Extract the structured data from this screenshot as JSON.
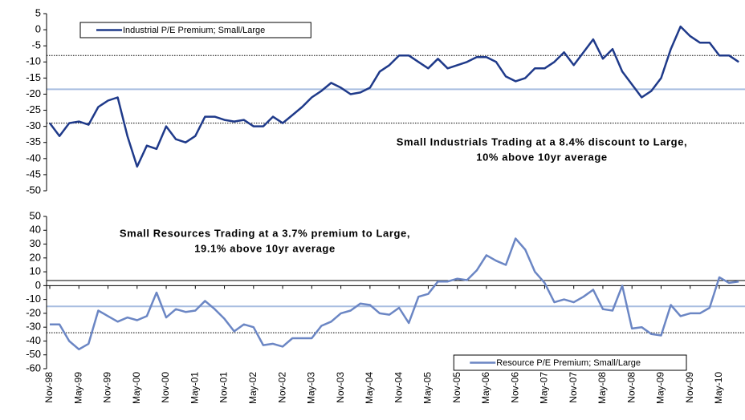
{
  "chart_data": [
    {
      "type": "line",
      "ylim": [
        -50,
        5
      ],
      "yticks": [
        5,
        0,
        -5,
        -10,
        -15,
        -20,
        -25,
        -30,
        -35,
        -40,
        -45,
        -50
      ],
      "series": [
        {
          "name": "Industrial P/E Premium; Small/Large",
          "color": "#1f3a8a",
          "values": [
            -29,
            -33,
            -29,
            -28.5,
            -29.5,
            -24,
            -22,
            -21,
            -33,
            -42.5,
            -36,
            -37,
            -30,
            -34,
            -35,
            -33,
            -27,
            -27,
            -28,
            -28.5,
            -28,
            -30,
            -30,
            -27,
            -29,
            -26.5,
            -24,
            -21,
            -19,
            -16.5,
            -18,
            -20,
            -19.5,
            -18,
            -13,
            -11,
            -8,
            -8,
            -10,
            -12,
            -9,
            -12,
            -11,
            -10,
            -8.5,
            -8.5,
            -10,
            -14.5,
            -16,
            -15,
            -12,
            -12,
            -10,
            -7,
            -11,
            -7,
            -3,
            -9,
            -6,
            -13,
            -17,
            -21,
            -19,
            -15,
            -6,
            1,
            -2,
            -4,
            -4,
            -8,
            -8,
            -10
          ]
        }
      ],
      "hlines": [
        {
          "value": -8,
          "color": "#000000",
          "dash": true
        },
        {
          "value": -18.5,
          "color": "#a8bde0",
          "dash": false
        },
        {
          "value": -29,
          "color": "#000000",
          "dash": true
        }
      ],
      "annotation": [
        "Small Industrials Trading at a 8.4% discount to Large,",
        "10%  above 10yr average"
      ],
      "legend": "top-left"
    },
    {
      "type": "line",
      "categories": [
        "Nov-98",
        null,
        null,
        "May-99",
        null,
        null,
        "Nov-99",
        null,
        null,
        "May-00",
        null,
        null,
        "Nov-00",
        null,
        null,
        "May-01",
        null,
        null,
        "Nov-01",
        null,
        null,
        "May-02",
        null,
        null,
        "Nov-02",
        null,
        null,
        "May-03",
        null,
        null,
        "Nov-03",
        null,
        null,
        "May-04",
        null,
        null,
        "Nov-04",
        null,
        null,
        "May-05",
        null,
        null,
        "Nov-05",
        null,
        null,
        "May-06",
        null,
        null,
        "Nov-06",
        null,
        null,
        "May-07",
        null,
        null,
        "Nov-07",
        null,
        null,
        "May-08",
        null,
        null,
        "Nov-08",
        null,
        null,
        "May-09",
        null,
        null,
        "Nov-09",
        null,
        null,
        "May-10",
        null,
        null
      ],
      "ylim": [
        -60,
        50
      ],
      "yticks": [
        50,
        40,
        30,
        20,
        10,
        0,
        -10,
        -20,
        -30,
        -40,
        -50,
        -60
      ],
      "series": [
        {
          "name": "Resource P/E Premium; Small/Large",
          "color": "#6b86c4",
          "values": [
            -28,
            -28,
            -40,
            -46,
            -42,
            -18,
            -22,
            -26,
            -23,
            -25,
            -22,
            -5,
            -23,
            -17,
            -19,
            -18,
            -11,
            -17,
            -24,
            -33,
            -28,
            -30,
            -43,
            -42,
            -44,
            -38,
            -38,
            -38,
            -29,
            -26,
            -20,
            -18,
            -13,
            -14,
            -20,
            -21,
            -16,
            -27,
            -8,
            -6,
            3,
            3,
            5,
            4,
            11,
            22,
            18,
            15,
            34,
            26,
            10,
            2,
            -12,
            -10,
            -12,
            -8,
            -3,
            -17,
            -18,
            0,
            -31,
            -30,
            -35,
            -36,
            -14,
            -22,
            -20,
            -20,
            -16,
            6,
            2,
            3
          ]
        }
      ],
      "hlines": [
        {
          "value": 3.7,
          "color": "#000000",
          "dash": false
        },
        {
          "value": -15,
          "color": "#a8bde0",
          "dash": false
        },
        {
          "value": -34,
          "color": "#000000",
          "dash": true
        }
      ],
      "annotation": [
        "Small Resources Trading at a 3.7% premium to Large,",
        "19.1% above 10yr average"
      ],
      "legend": "bottom-right"
    }
  ]
}
